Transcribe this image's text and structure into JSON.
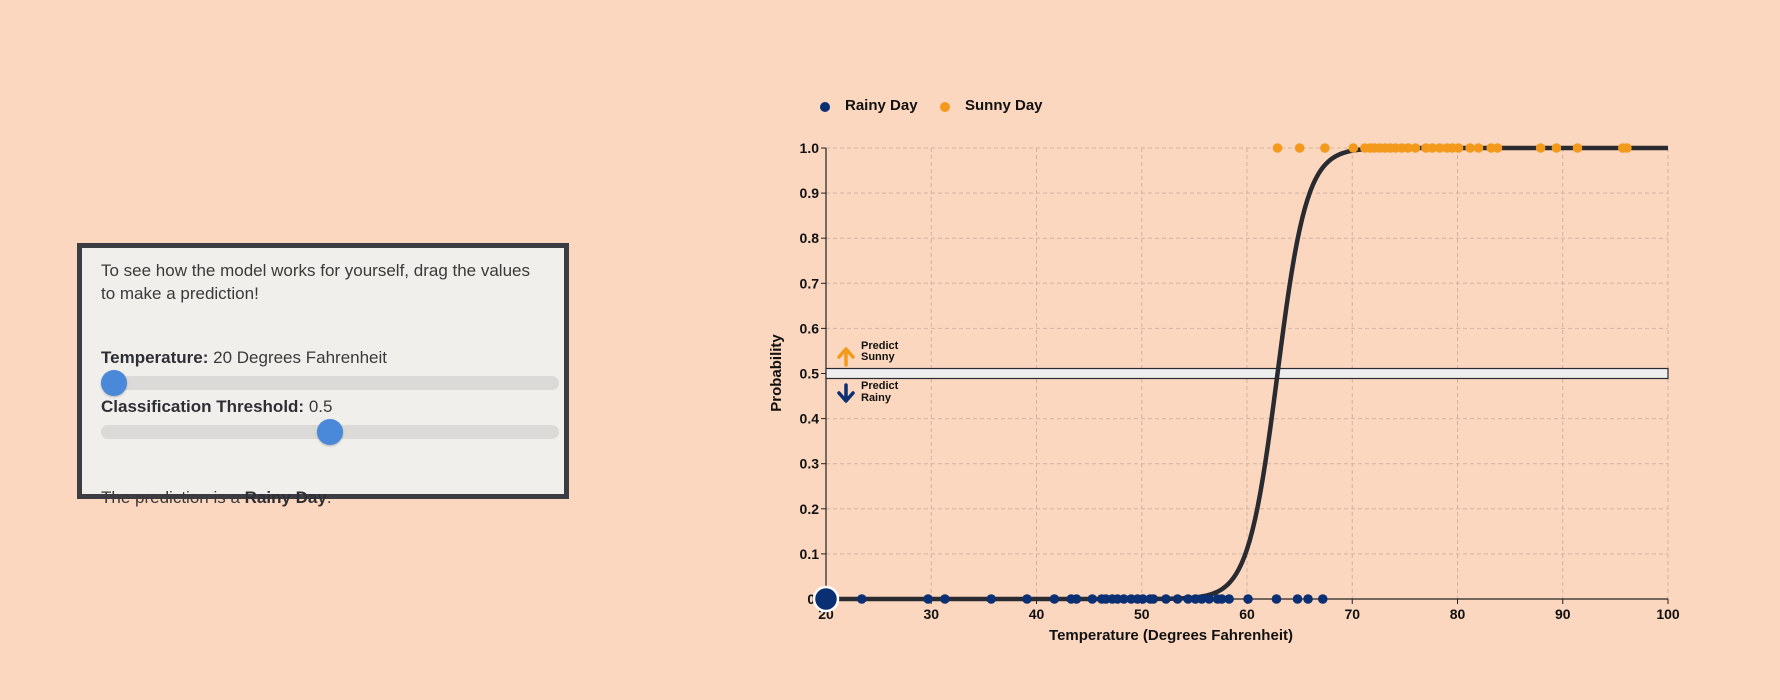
{
  "controls": {
    "intro_text": "To see how the model works for yourself, drag the values to make a prediction!",
    "temperature_label": "Temperature:",
    "temperature_value_text": "20 Degrees Fahrenheit",
    "temperature": {
      "value": 20,
      "min": 20,
      "max": 100
    },
    "threshold_label": "Classification Threshold:",
    "threshold_value_text": "0.5",
    "threshold": {
      "value": 0.5,
      "min": 0,
      "max": 1
    },
    "prediction_prefix": "The prediction is a ",
    "prediction_value": "Rainy Day",
    "prediction_suffix": ".",
    "slider_color": "#4a88d9"
  },
  "chart_data": {
    "type": "scatter",
    "title": "",
    "xlabel": "Temperature (Degrees Fahrenheit)",
    "ylabel": "Probability",
    "xlim": [
      20,
      100
    ],
    "ylim": [
      0,
      1
    ],
    "x_ticks": [
      "20",
      "30",
      "40",
      "50",
      "60",
      "70",
      "80",
      "90",
      "100"
    ],
    "x_tick_values": [
      20,
      30,
      40,
      50,
      60,
      70,
      80,
      90,
      100
    ],
    "y_ticks": [
      "0.",
      "0.1",
      "0.2",
      "0.3",
      "0.4",
      "0.5",
      "0.6",
      "0.7",
      "0.8",
      "0.9",
      "1.0"
    ],
    "y_tick_values": [
      0,
      0.1,
      0.2,
      0.3,
      0.4,
      0.5,
      0.6,
      0.7,
      0.8,
      0.9,
      1.0
    ],
    "grid": true,
    "legend_position": "top-left",
    "series": [
      {
        "name": "Rainy Day",
        "color": "#0b2f73",
        "y": 0,
        "x": [
          23.4,
          29.7,
          31.3,
          35.7,
          39.1,
          41.7,
          43.3,
          43.8,
          45.3,
          46.2,
          46.6,
          47.2,
          47.7,
          48.3,
          49.0,
          49.6,
          50.1,
          50.8,
          51.1,
          52.3,
          53.4,
          54.4,
          55.1,
          55.7,
          56.4,
          57.2,
          57.6,
          58.3,
          60.1,
          62.8,
          64.8,
          65.8,
          67.2
        ]
      },
      {
        "name": "Sunny Day",
        "color": "#f39a1c",
        "y": 1,
        "x": [
          62.9,
          65.0,
          67.4,
          70.1,
          71.2,
          71.7,
          72.1,
          72.6,
          73.1,
          73.6,
          74.1,
          74.7,
          75.3,
          76.0,
          77.0,
          77.6,
          78.3,
          79.0,
          79.5,
          80.1,
          81.2,
          82.0,
          83.2,
          83.8,
          87.9,
          89.4,
          91.4,
          95.7,
          96.1
        ]
      }
    ],
    "curve": {
      "name": "logistic",
      "midpoint": 62.9,
      "steepness": 0.72,
      "color": "#2a2b30"
    },
    "threshold_line": {
      "value": 0.5,
      "color": "#eeeeee"
    },
    "current_point": {
      "x": 20,
      "y": 0,
      "color": "#0b2f73"
    },
    "annotations": {
      "sunny_line1": "Predict",
      "sunny_line2": "Sunny",
      "rainy_line1": "Predict",
      "rainy_line2": "Rainy"
    }
  }
}
